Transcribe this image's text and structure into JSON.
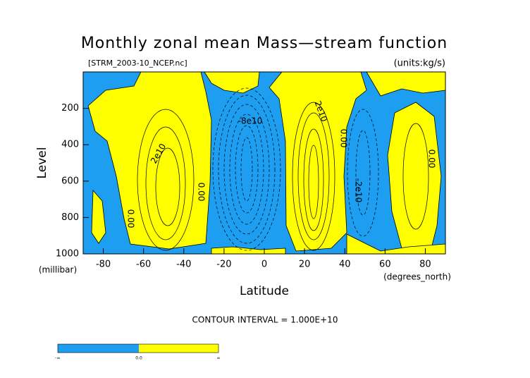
{
  "chart_data": {
    "type": "contour",
    "title": "Monthly zonal mean Mass—stream function",
    "subtitle": "[STRM_2003-10_NCEP.nc]",
    "units_label": "(units:kg/s)",
    "y_label": "Level",
    "y_unit": "(millibar)",
    "x_label": "Latitude",
    "x_unit": "(degrees_north)",
    "footer": "CONTOUR INTERVAL = 1.000E+10",
    "xlim": [
      -90,
      90
    ],
    "xticks": [
      -80,
      -60,
      -40,
      -20,
      0,
      20,
      40,
      60,
      80
    ],
    "ylim": [
      1000,
      0
    ],
    "yticks": [
      200,
      400,
      600,
      800,
      1000
    ],
    "negative_color": "#1e9ef0",
    "positive_color": "#ffff00",
    "contour_labels": [
      "2e10",
      "0.00",
      "0.00",
      "-8e10",
      "2e10",
      "0.00",
      "-2e10",
      "0.00"
    ],
    "colorbar_labels": [
      "-∞",
      "0.0",
      "∞"
    ]
  }
}
